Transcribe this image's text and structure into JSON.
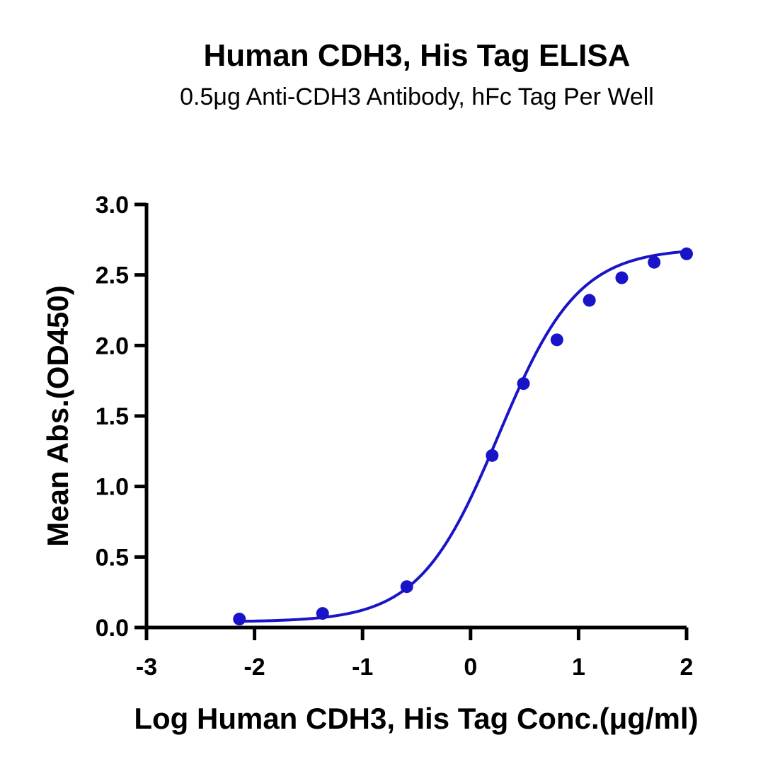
{
  "chart_data": {
    "type": "scatter",
    "title": "Human CDH3, His Tag ELISA",
    "subtitle": "0.5μg Anti-CDH3 Antibody, hFc Tag Per Well",
    "xlabel": "Log Human CDH3, His Tag Conc.(μg/ml)",
    "ylabel": "Mean Abs.(OD450)",
    "xlim": [
      -3,
      2
    ],
    "ylim": [
      0,
      3.0
    ],
    "x_ticks": [
      "-3",
      "-2",
      "-1",
      "0",
      "1",
      "2"
    ],
    "y_ticks": [
      "0.0",
      "0.5",
      "1.0",
      "1.5",
      "2.0",
      "2.5",
      "3.0"
    ],
    "grid": false,
    "legend": "none",
    "color": "#1a14c8",
    "series": [
      {
        "x": [
          -2.14,
          -1.37,
          -0.59,
          0.2,
          0.49,
          0.8,
          1.1,
          1.4,
          1.7,
          2.0
        ],
        "y": [
          0.06,
          0.1,
          0.29,
          1.22,
          1.73,
          2.04,
          2.32,
          2.48,
          2.59,
          2.65
        ],
        "fit": "sigmoidal 4PL"
      }
    ]
  }
}
